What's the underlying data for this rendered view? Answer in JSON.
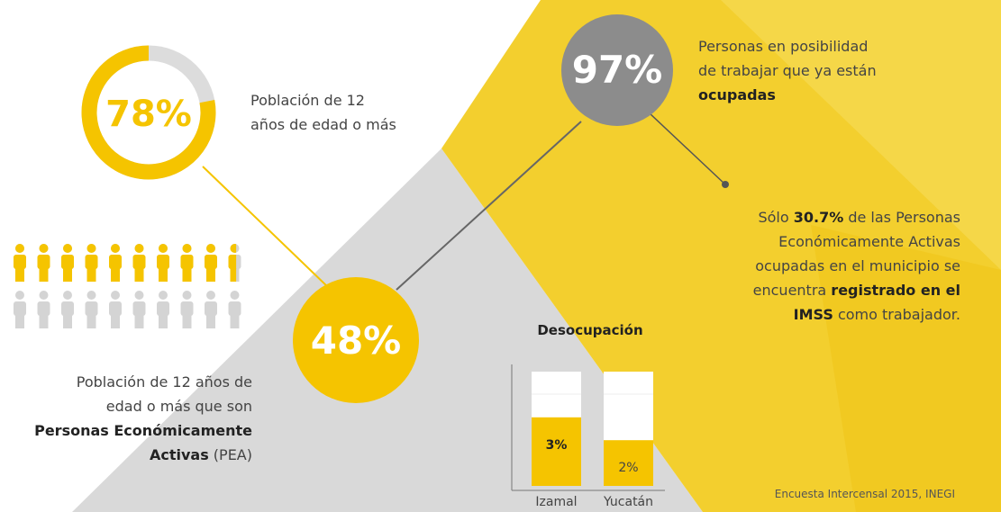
{
  "donut": {
    "value": 78,
    "label": "78%",
    "caption_lines": [
      "Población de 12",
      "años de edad o más"
    ]
  },
  "employed": {
    "value": 97,
    "label": "97%",
    "caption_lines": [
      "Personas en posibilidad",
      "de trabajar que ya están"
    ],
    "caption_bold": "ocupadas"
  },
  "pea": {
    "value": 48,
    "label": "48%",
    "caption_lines": [
      "Población de 12 años de",
      "edad o más que son"
    ],
    "bold_line": "Personas Económicamente",
    "bold_word": "Activas",
    "suffix": " (PEA)"
  },
  "imss": {
    "lines": [
      [
        {
          "text": "Sólo ",
          "bold": false
        },
        {
          "text": "30.7%",
          "bold": true
        },
        {
          "text": " de las Personas",
          "bold": false
        }
      ],
      [
        {
          "text": "Económicamente Activas",
          "bold": false
        }
      ],
      [
        {
          "text": "ocupadas en el municipio se",
          "bold": false
        }
      ],
      [
        {
          "text": "encuentra ",
          "bold": false
        },
        {
          "text": "registrado en el",
          "bold": true
        }
      ],
      [
        {
          "text": "IMSS",
          "bold": true
        },
        {
          "text": " como trabajador.",
          "bold": false
        }
      ]
    ]
  },
  "chart_data": {
    "type": "bar",
    "title": "Desocupación",
    "categories": [
      "Izamal",
      "Yucatán"
    ],
    "values": [
      3,
      2
    ],
    "value_labels": [
      "3%",
      "2%"
    ],
    "ylim": [
      0,
      5
    ],
    "color": "#f5c400"
  },
  "source": "Encuesta Intercensal 2015, INEGI"
}
